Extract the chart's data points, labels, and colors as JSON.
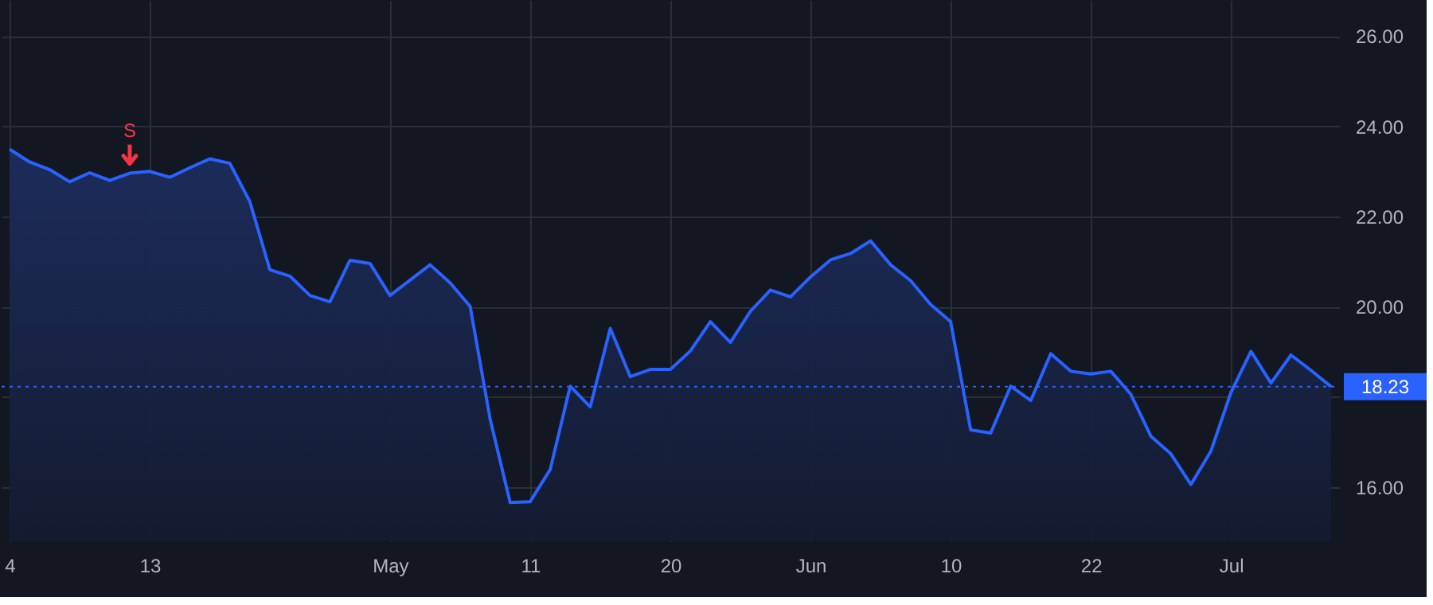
{
  "chart_data": {
    "type": "area",
    "categories": [
      "4",
      null,
      null,
      null,
      null,
      null,
      null,
      "13",
      null,
      null,
      null,
      null,
      null,
      null,
      null,
      null,
      null,
      null,
      null,
      "May",
      null,
      null,
      null,
      null,
      null,
      null,
      "11",
      null,
      null,
      null,
      null,
      null,
      null,
      "20",
      null,
      null,
      null,
      null,
      null,
      null,
      "Jun",
      null,
      null,
      null,
      null,
      null,
      null,
      "10",
      null,
      null,
      null,
      null,
      null,
      null,
      "22",
      null,
      null,
      null,
      null,
      null,
      null,
      "Jul",
      null,
      null,
      null,
      null,
      null
    ],
    "series": [
      {
        "color": "#2962ff",
        "values": [
          23.49,
          23.21,
          23.04,
          22.77,
          22.97,
          22.8,
          22.96,
          23.0,
          22.87,
          23.08,
          23.28,
          23.18,
          22.33,
          20.82,
          20.68,
          20.25,
          20.11,
          21.03,
          20.96,
          20.25,
          20.59,
          20.93,
          20.53,
          20.01,
          17.51,
          15.66,
          15.68,
          16.39,
          18.24,
          17.78,
          19.52,
          18.45,
          18.61,
          18.61,
          19.02,
          19.67,
          19.21,
          19.9,
          20.37,
          20.22,
          20.66,
          21.04,
          21.18,
          21.46,
          20.93,
          20.58,
          20.05,
          19.67,
          17.27,
          17.2,
          18.24,
          17.92,
          18.96,
          18.57,
          18.51,
          18.57,
          18.06,
          17.13,
          16.74,
          16.06,
          16.8,
          18.1,
          19.01,
          18.31,
          18.93,
          18.59,
          18.23
        ]
      }
    ],
    "ylim": [
      14.8,
      26.8
    ],
    "yticks": [
      {
        "value": 16,
        "label": "16.00"
      },
      {
        "value": 18,
        "label": null
      },
      {
        "value": 20,
        "label": "20.00"
      },
      {
        "value": 22,
        "label": "22.00"
      },
      {
        "value": 24,
        "label": "24.00"
      },
      {
        "value": 26,
        "label": "26.00"
      }
    ],
    "ref_lines": [
      {
        "axis": "y",
        "value": 18.23,
        "label": "18.23",
        "color": "#2962ff",
        "line_style": "dotted"
      }
    ],
    "annotations": [
      {
        "text": "S",
        "y": 22.96
      }
    ],
    "grid": true
  }
}
